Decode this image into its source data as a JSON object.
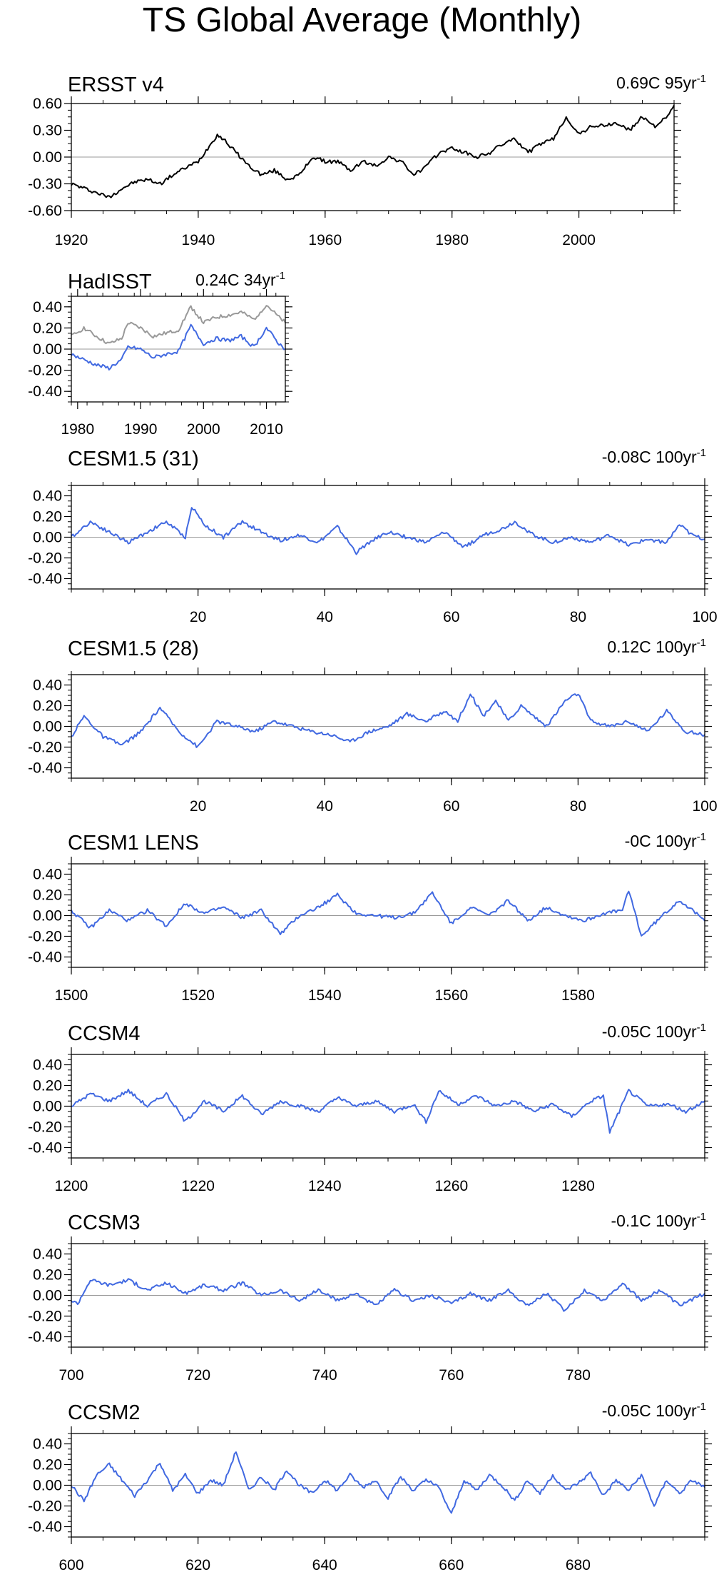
{
  "page_title": "TS Global Average (Monthly)",
  "colors": {
    "observed": "#000000",
    "model": "#4169e1",
    "secondary": "#999999",
    "zero_line": "#999999"
  },
  "chart_data": [
    {
      "type": "line",
      "title": "ERSST v4",
      "trend_value": "0.69C 95yr",
      "trend_exp": "-1",
      "xlim": [
        1920,
        2015
      ],
      "ylim": [
        -0.6,
        0.6
      ],
      "xticks": [
        1920,
        1940,
        1960,
        1980,
        2000
      ],
      "xtick_labels": [
        "1920",
        "1940",
        "1960",
        "1980",
        "2000"
      ],
      "yticks": [
        -0.6,
        -0.3,
        0,
        0.3,
        0.6
      ],
      "ytick_labels": [
        "-0.60",
        "-0.30",
        "0.00",
        "0.30",
        "0.60"
      ],
      "series": [
        {
          "color": "#000000",
          "x": [
            1920,
            1922,
            1924,
            1926,
            1928,
            1930,
            1932,
            1934,
            1936,
            1938,
            1940,
            1942,
            1943,
            1944,
            1946,
            1948,
            1950,
            1952,
            1954,
            1956,
            1958,
            1960,
            1962,
            1964,
            1966,
            1968,
            1970,
            1972,
            1974,
            1976,
            1978,
            1980,
            1982,
            1984,
            1986,
            1988,
            1990,
            1992,
            1994,
            1996,
            1998,
            2000,
            2002,
            2004,
            2006,
            2008,
            2010,
            2012,
            2014,
            2015
          ],
          "y": [
            -0.3,
            -0.35,
            -0.4,
            -0.45,
            -0.35,
            -0.28,
            -0.25,
            -0.3,
            -0.2,
            -0.12,
            -0.05,
            0.15,
            0.25,
            0.2,
            0.05,
            -0.1,
            -0.2,
            -0.15,
            -0.25,
            -0.2,
            0.0,
            -0.05,
            -0.05,
            -0.15,
            -0.05,
            -0.1,
            0.0,
            -0.05,
            -0.2,
            -0.1,
            0.05,
            0.1,
            0.05,
            0.0,
            0.05,
            0.15,
            0.2,
            0.05,
            0.15,
            0.2,
            0.45,
            0.25,
            0.35,
            0.35,
            0.38,
            0.3,
            0.45,
            0.35,
            0.45,
            0.58
          ]
        }
      ]
    },
    {
      "type": "line",
      "title": "HadISST",
      "trend_value": "0.24C 34yr",
      "trend_exp": "-1",
      "xlim": [
        1979,
        2013
      ],
      "ylim": [
        -0.5,
        0.5
      ],
      "xticks": [
        1980,
        1990,
        2000,
        2010
      ],
      "xtick_labels": [
        "1980",
        "1990",
        "2000",
        "2010"
      ],
      "yticks": [
        -0.4,
        -0.2,
        0,
        0.2,
        0.4
      ],
      "ytick_labels": [
        "-0.40",
        "-0.20",
        "0.00",
        "0.20",
        "0.40"
      ],
      "series": [
        {
          "color": "#999999",
          "x": [
            1979,
            1981,
            1983,
            1985,
            1987,
            1988,
            1990,
            1992,
            1994,
            1996,
            1998,
            2000,
            2002,
            2004,
            2006,
            2008,
            2010,
            2012,
            2013
          ],
          "y": [
            0.12,
            0.2,
            0.12,
            0.05,
            0.1,
            0.25,
            0.2,
            0.12,
            0.15,
            0.18,
            0.4,
            0.25,
            0.3,
            0.32,
            0.35,
            0.28,
            0.42,
            0.3,
            0.25
          ]
        },
        {
          "color": "#4169e1",
          "x": [
            1979,
            1981,
            1983,
            1985,
            1987,
            1988,
            1990,
            1992,
            1994,
            1996,
            1998,
            2000,
            2002,
            2004,
            2006,
            2008,
            2010,
            2012,
            2013
          ],
          "y": [
            -0.05,
            -0.1,
            -0.15,
            -0.18,
            -0.1,
            0.02,
            0.0,
            -0.08,
            -0.05,
            -0.02,
            0.22,
            0.05,
            0.1,
            0.08,
            0.12,
            0.02,
            0.2,
            0.05,
            0.0
          ]
        }
      ]
    },
    {
      "type": "line",
      "title": "CESM1.5 (31)",
      "trend_value": "-0.08C 100yr",
      "trend_exp": "-1",
      "xlim": [
        0,
        100
      ],
      "ylim": [
        -0.5,
        0.5
      ],
      "xticks": [
        20,
        40,
        60,
        80,
        100
      ],
      "xtick_labels": [
        "20",
        "40",
        "60",
        "80",
        "100"
      ],
      "yticks": [
        -0.4,
        -0.2,
        0,
        0.2,
        0.4
      ],
      "ytick_labels": [
        "-0.40",
        "-0.20",
        "0.00",
        "0.20",
        "0.40"
      ],
      "series": [
        {
          "color": "#4169e1",
          "x": [
            0,
            3,
            6,
            9,
            12,
            15,
            18,
            19,
            21,
            24,
            27,
            30,
            33,
            36,
            39,
            42,
            45,
            47,
            50,
            53,
            56,
            59,
            62,
            65,
            68,
            70,
            73,
            76,
            79,
            82,
            85,
            88,
            91,
            94,
            96,
            98,
            100
          ],
          "y": [
            0.0,
            0.15,
            0.05,
            -0.05,
            0.05,
            0.15,
            0.0,
            0.3,
            0.12,
            0.0,
            0.15,
            0.05,
            -0.03,
            0.02,
            -0.05,
            0.1,
            -0.15,
            -0.05,
            0.05,
            0.0,
            -0.05,
            0.05,
            -0.1,
            0.02,
            0.08,
            0.15,
            0.02,
            -0.05,
            0.0,
            -0.05,
            0.02,
            -0.08,
            -0.02,
            -0.05,
            0.12,
            0.02,
            -0.02
          ]
        }
      ]
    },
    {
      "type": "line",
      "title": "CESM1.5 (28)",
      "trend_value": "0.12C 100yr",
      "trend_exp": "-1",
      "xlim": [
        0,
        100
      ],
      "ylim": [
        -0.5,
        0.5
      ],
      "xticks": [
        20,
        40,
        60,
        80,
        100
      ],
      "xtick_labels": [
        "20",
        "40",
        "60",
        "80",
        "100"
      ],
      "yticks": [
        -0.4,
        -0.2,
        0,
        0.2,
        0.4
      ],
      "ytick_labels": [
        "-0.40",
        "-0.20",
        "0.00",
        "0.20",
        "0.40"
      ],
      "series": [
        {
          "color": "#4169e1",
          "x": [
            0,
            2,
            5,
            8,
            11,
            14,
            17,
            20,
            23,
            26,
            29,
            32,
            35,
            38,
            41,
            44,
            47,
            50,
            53,
            56,
            59,
            61,
            63,
            65,
            67,
            69,
            71,
            73,
            75,
            78,
            80,
            82,
            85,
            88,
            91,
            94,
            97,
            100
          ],
          "y": [
            -0.1,
            0.1,
            -0.1,
            -0.18,
            -0.05,
            0.18,
            -0.05,
            -0.2,
            0.05,
            0.0,
            -0.05,
            0.05,
            0.0,
            -0.05,
            -0.08,
            -0.15,
            -0.05,
            0.0,
            0.12,
            0.05,
            0.15,
            0.05,
            0.32,
            0.1,
            0.25,
            0.05,
            0.2,
            0.1,
            0.0,
            0.25,
            0.32,
            0.05,
            0.0,
            0.05,
            -0.05,
            0.15,
            -0.05,
            -0.08
          ]
        }
      ]
    },
    {
      "type": "line",
      "title": "CESM1 LENS",
      "trend_value": "-0C 100yr",
      "trend_exp": "-1",
      "xlim": [
        1500,
        1600
      ],
      "ylim": [
        -0.5,
        0.5
      ],
      "xticks": [
        1500,
        1520,
        1540,
        1560,
        1580
      ],
      "xtick_labels": [
        "1500",
        "1520",
        "1540",
        "1560",
        "1580"
      ],
      "yticks": [
        -0.4,
        -0.2,
        0,
        0.2,
        0.4
      ],
      "ytick_labels": [
        "-0.40",
        "-0.20",
        "0.00",
        "0.20",
        "0.40"
      ],
      "series": [
        {
          "color": "#4169e1",
          "x": [
            1500,
            1503,
            1506,
            1509,
            1512,
            1515,
            1518,
            1521,
            1524,
            1527,
            1530,
            1533,
            1536,
            1539,
            1542,
            1545,
            1548,
            1551,
            1554,
            1557,
            1560,
            1563,
            1566,
            1569,
            1572,
            1575,
            1578,
            1581,
            1584,
            1587,
            1588,
            1590,
            1593,
            1596,
            1598,
            1600
          ],
          "y": [
            0.05,
            -0.12,
            0.05,
            -0.05,
            0.05,
            -0.1,
            0.12,
            0.02,
            0.08,
            -0.02,
            0.05,
            -0.18,
            0.0,
            0.08,
            0.2,
            0.02,
            0.0,
            -0.02,
            0.02,
            0.22,
            -0.08,
            0.08,
            0.0,
            0.15,
            -0.05,
            0.08,
            0.0,
            -0.05,
            0.02,
            0.05,
            0.25,
            -0.2,
            -0.02,
            0.15,
            0.05,
            -0.05
          ]
        }
      ]
    },
    {
      "type": "line",
      "title": "CCSM4",
      "trend_value": "-0.05C 100yr",
      "trend_exp": "-1",
      "xlim": [
        1200,
        1300
      ],
      "ylim": [
        -0.5,
        0.5
      ],
      "xticks": [
        1200,
        1220,
        1240,
        1260,
        1280
      ],
      "xtick_labels": [
        "1200",
        "1220",
        "1240",
        "1260",
        "1280"
      ],
      "yticks": [
        -0.4,
        -0.2,
        0,
        0.2,
        0.4
      ],
      "ytick_labels": [
        "-0.40",
        "-0.20",
        "0.00",
        "0.20",
        "0.40"
      ],
      "series": [
        {
          "color": "#4169e1",
          "x": [
            1200,
            1203,
            1206,
            1209,
            1212,
            1215,
            1218,
            1221,
            1224,
            1227,
            1230,
            1233,
            1236,
            1239,
            1242,
            1245,
            1248,
            1251,
            1254,
            1256,
            1258,
            1261,
            1264,
            1267,
            1270,
            1273,
            1276,
            1279,
            1282,
            1284,
            1285,
            1288,
            1291,
            1294,
            1297,
            1300
          ],
          "y": [
            0.0,
            0.12,
            0.05,
            0.15,
            0.0,
            0.12,
            -0.15,
            0.05,
            -0.05,
            0.1,
            -0.08,
            0.05,
            0.0,
            -0.05,
            0.08,
            0.0,
            0.05,
            -0.05,
            0.02,
            -0.15,
            0.15,
            0.02,
            0.1,
            0.0,
            0.05,
            -0.05,
            0.02,
            -0.1,
            0.05,
            0.1,
            -0.25,
            0.15,
            0.0,
            0.02,
            -0.05,
            0.05
          ]
        }
      ]
    },
    {
      "type": "line",
      "title": "CCSM3",
      "trend_value": "-0.1C 100yr",
      "trend_exp": "-1",
      "xlim": [
        700,
        800
      ],
      "ylim": [
        -0.5,
        0.5
      ],
      "xticks": [
        700,
        720,
        740,
        760,
        780
      ],
      "xtick_labels": [
        "700",
        "720",
        "740",
        "760",
        "780"
      ],
      "yticks": [
        -0.4,
        -0.2,
        0,
        0.2,
        0.4
      ],
      "ytick_labels": [
        "-0.40",
        "-0.20",
        "0.00",
        "0.20",
        "0.40"
      ],
      "series": [
        {
          "color": "#4169e1",
          "x": [
            700,
            701,
            703,
            706,
            709,
            712,
            715,
            718,
            721,
            724,
            727,
            730,
            733,
            736,
            739,
            742,
            745,
            748,
            751,
            754,
            757,
            760,
            763,
            766,
            769,
            772,
            775,
            778,
            781,
            784,
            787,
            790,
            793,
            796,
            800
          ],
          "y": [
            -0.05,
            -0.08,
            0.15,
            0.1,
            0.15,
            0.05,
            0.12,
            0.02,
            0.1,
            0.05,
            0.12,
            0.0,
            0.05,
            -0.05,
            0.05,
            -0.05,
            0.02,
            -0.1,
            0.05,
            -0.05,
            0.0,
            -0.08,
            0.02,
            -0.05,
            0.05,
            -0.1,
            0.02,
            -0.15,
            0.05,
            -0.05,
            0.12,
            -0.05,
            0.05,
            -0.1,
            0.02
          ]
        }
      ]
    },
    {
      "type": "line",
      "title": "CCSM2",
      "trend_value": "-0.05C 100yr",
      "trend_exp": "-1",
      "xlim": [
        600,
        700
      ],
      "ylim": [
        -0.5,
        0.5
      ],
      "xticks": [
        600,
        620,
        640,
        660,
        680
      ],
      "xtick_labels": [
        "600",
        "620",
        "640",
        "660",
        "680"
      ],
      "yticks": [
        -0.4,
        -0.2,
        0,
        0.2,
        0.4
      ],
      "ytick_labels": [
        "-0.40",
        "-0.20",
        "0.00",
        "0.20",
        "0.40"
      ],
      "series": [
        {
          "color": "#4169e1",
          "x": [
            600,
            602,
            604,
            606,
            608,
            610,
            612,
            614,
            616,
            618,
            620,
            622,
            624,
            626,
            628,
            630,
            632,
            634,
            636,
            638,
            640,
            642,
            644,
            646,
            648,
            650,
            652,
            654,
            656,
            658,
            660,
            662,
            664,
            666,
            668,
            670,
            672,
            674,
            676,
            678,
            680,
            682,
            684,
            686,
            688,
            690,
            692,
            694,
            696,
            698,
            700
          ],
          "y": [
            0.0,
            -0.15,
            0.1,
            0.2,
            0.05,
            -0.1,
            0.05,
            0.22,
            -0.05,
            0.1,
            -0.08,
            0.05,
            0.0,
            0.33,
            -0.05,
            0.08,
            -0.05,
            0.15,
            0.0,
            -0.08,
            0.05,
            -0.05,
            0.1,
            -0.02,
            0.05,
            -0.12,
            0.08,
            -0.05,
            0.05,
            -0.02,
            -0.28,
            0.05,
            -0.05,
            0.1,
            0.0,
            -0.15,
            0.05,
            -0.08,
            0.1,
            -0.05,
            0.02,
            0.12,
            -0.1,
            0.05,
            -0.05,
            0.1,
            -0.2,
            0.05,
            -0.08,
            0.05,
            -0.02
          ]
        }
      ]
    }
  ]
}
